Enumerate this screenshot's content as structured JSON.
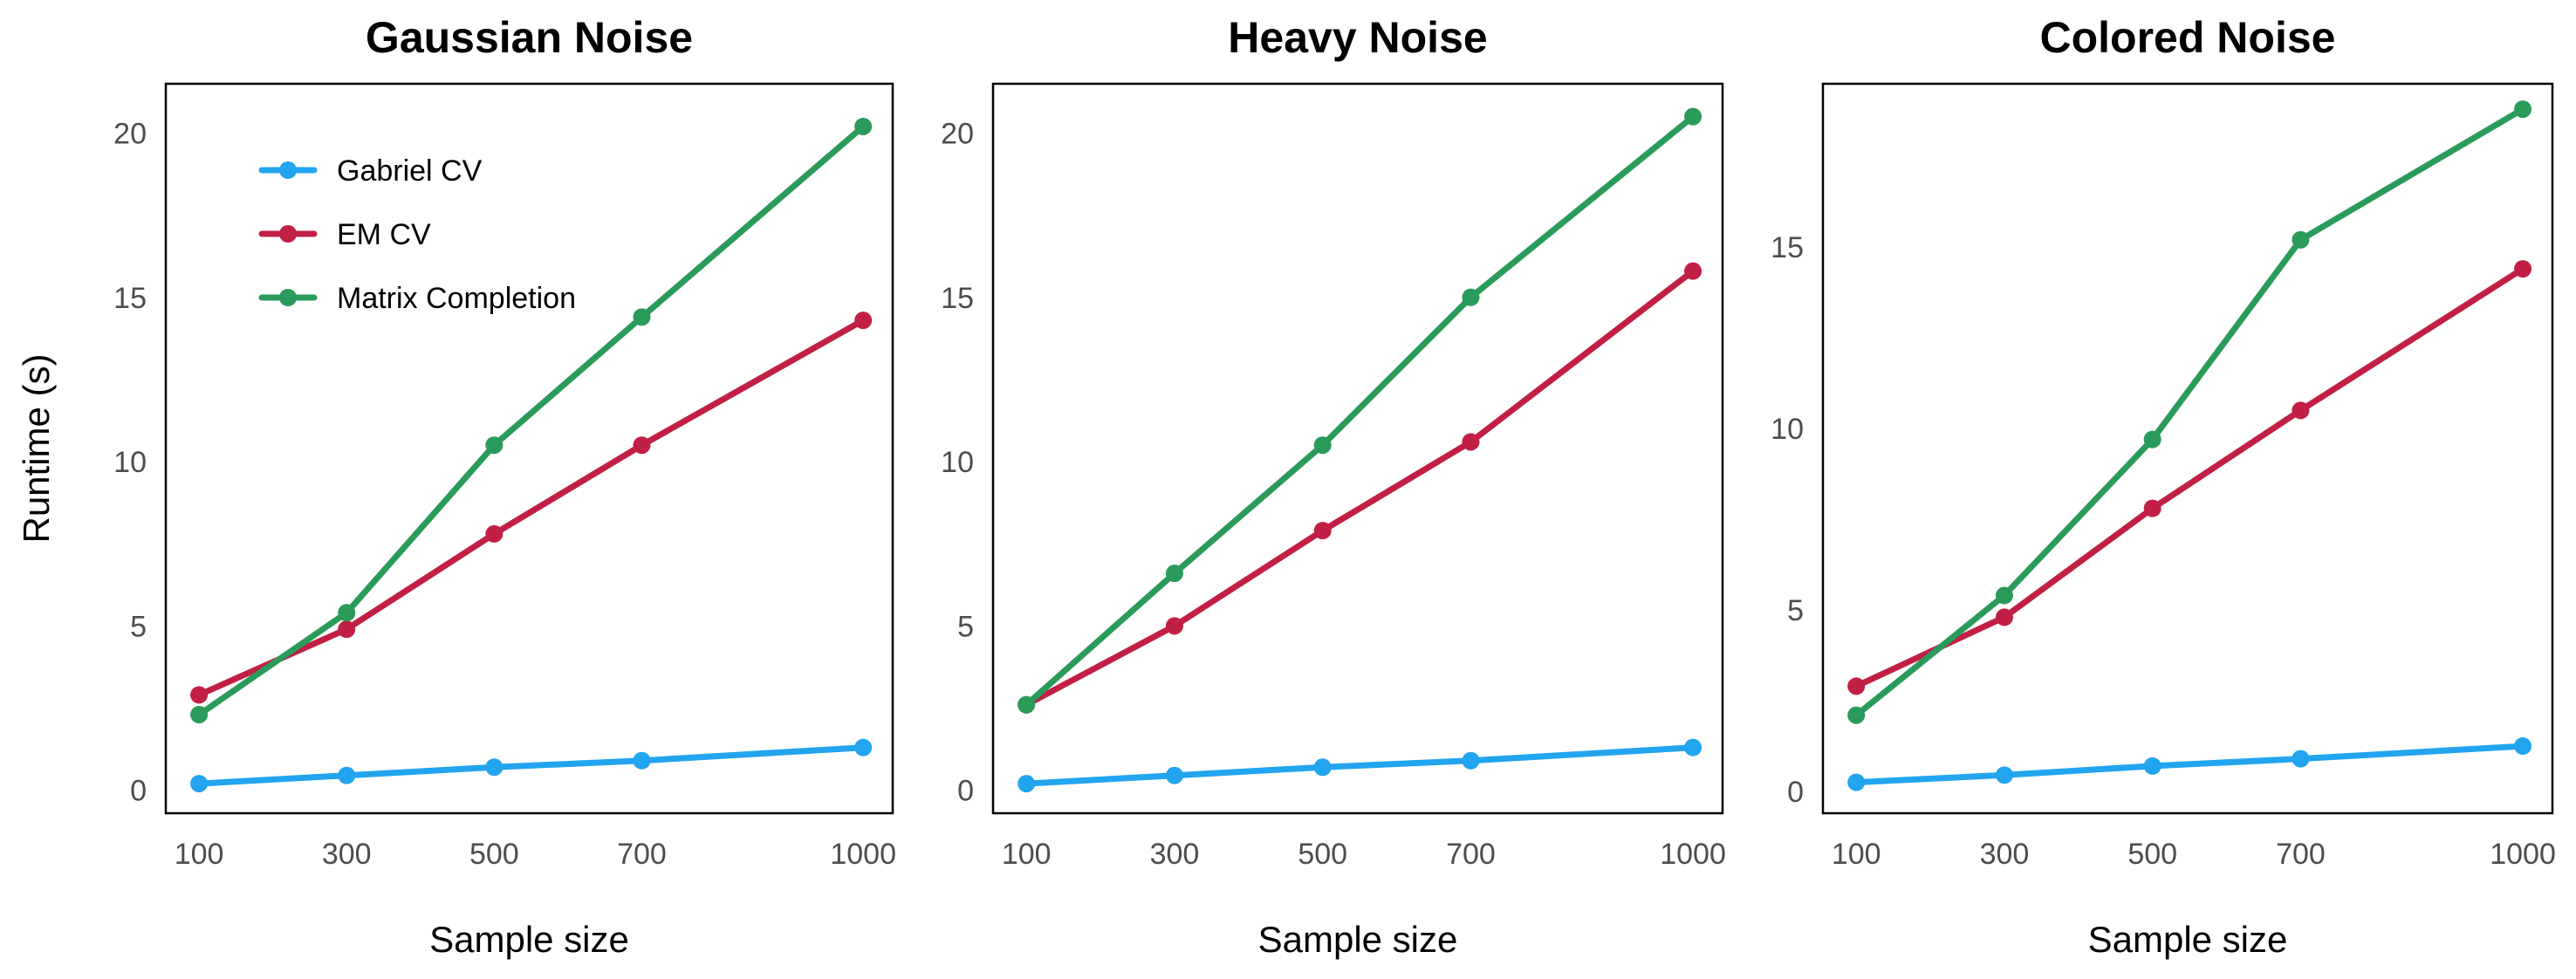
{
  "chart_data": [
    {
      "type": "line",
      "title": "Gaussian Noise",
      "xlabel": "Sample size",
      "ylabel": "Runtime (s)",
      "x": [
        100,
        300,
        500,
        700,
        1000
      ],
      "xticks": [
        100,
        300,
        500,
        700,
        1000
      ],
      "yticks": [
        0,
        5,
        10,
        15,
        20
      ],
      "xlim": [
        55,
        1040
      ],
      "ylim": [
        -0.7,
        21.5
      ],
      "grid": false,
      "legend": "top-left",
      "series": [
        {
          "name": "Gabriel CV",
          "color": "#22a4ef",
          "values": [
            0.2,
            0.45,
            0.7,
            0.9,
            1.3
          ]
        },
        {
          "name": "EM CV",
          "color": "#c21f45",
          "values": [
            2.9,
            4.9,
            7.8,
            10.5,
            14.3
          ]
        },
        {
          "name": "Matrix Completion",
          "color": "#2a9b5a",
          "values": [
            2.3,
            5.4,
            10.5,
            14.4,
            20.2
          ]
        }
      ]
    },
    {
      "type": "line",
      "title": "Heavy Noise",
      "xlabel": "Sample size",
      "ylabel": "",
      "x": [
        100,
        300,
        500,
        700,
        1000
      ],
      "xticks": [
        100,
        300,
        500,
        700,
        1000
      ],
      "yticks": [
        0,
        5,
        10,
        15,
        20
      ],
      "xlim": [
        55,
        1040
      ],
      "ylim": [
        -0.7,
        21.5
      ],
      "grid": false,
      "legend": "",
      "series": [
        {
          "name": "Gabriel CV",
          "color": "#22a4ef",
          "values": [
            0.2,
            0.45,
            0.7,
            0.9,
            1.3
          ]
        },
        {
          "name": "EM CV",
          "color": "#c21f45",
          "values": [
            2.6,
            5.0,
            7.9,
            10.6,
            15.8
          ]
        },
        {
          "name": "Matrix Completion",
          "color": "#2a9b5a",
          "values": [
            2.6,
            6.6,
            10.5,
            15.0,
            20.5
          ]
        }
      ]
    },
    {
      "type": "line",
      "title": "Colored Noise",
      "xlabel": "Sample size",
      "ylabel": "",
      "x": [
        100,
        300,
        500,
        700,
        1000
      ],
      "xticks": [
        100,
        300,
        500,
        700,
        1000
      ],
      "yticks": [
        0,
        5,
        10,
        15
      ],
      "xlim": [
        55,
        1040
      ],
      "ylim": [
        -0.6,
        19.5
      ],
      "grid": false,
      "legend": "",
      "series": [
        {
          "name": "Gabriel CV",
          "color": "#22a4ef",
          "values": [
            0.25,
            0.45,
            0.7,
            0.9,
            1.25
          ]
        },
        {
          "name": "EM CV",
          "color": "#c21f45",
          "values": [
            2.9,
            4.8,
            7.8,
            10.5,
            14.4
          ]
        },
        {
          "name": "Matrix Completion",
          "color": "#2a9b5a",
          "values": [
            2.1,
            5.4,
            9.7,
            15.2,
            18.8
          ]
        }
      ]
    }
  ]
}
